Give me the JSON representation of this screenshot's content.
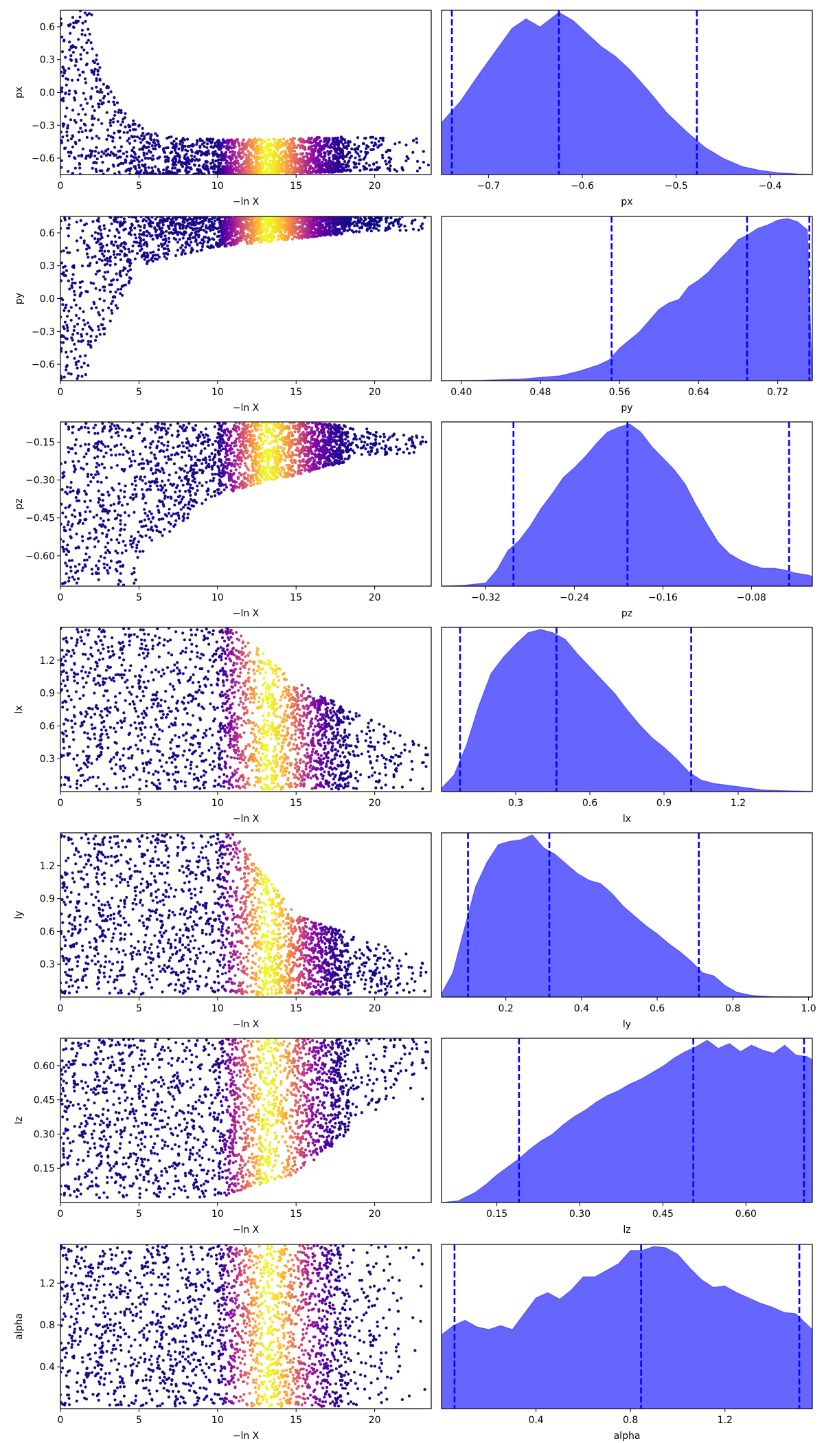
{
  "chart_data": [
    {
      "type": "scatter",
      "xlabel": "−ln X",
      "ylabel": "px",
      "xlim": [
        0,
        23.6
      ],
      "ylim": [
        -0.75,
        0.75
      ],
      "xticks": [
        0,
        5,
        10,
        15,
        20
      ],
      "yticks": [
        -0.6,
        -0.3,
        0.0,
        0.3,
        0.6
      ],
      "ytick_labels": [
        "−0.6",
        "−0.3",
        "0.0",
        "0.3",
        "0.6"
      ],
      "colormap": "plasma",
      "shape": {
        "kind": "floor",
        "floor_x1": -0.58,
        "floor_x20": -0.52,
        "top_x2": 0.75,
        "band": 0.12
      }
    },
    {
      "type": "area",
      "xlabel": "px",
      "xlim": [
        -0.75,
        -0.355
      ],
      "xticks": [
        -0.7,
        -0.6,
        -0.5,
        -0.4
      ],
      "xtick_labels": [
        "−0.7",
        "−0.6",
        "−0.5",
        "−0.4"
      ],
      "quantiles": [
        -0.739,
        -0.625,
        -0.478
      ],
      "fill_color": "#6666ff",
      "line_color": "#0000ff",
      "density": {
        "x": [
          -0.75,
          -0.73,
          -0.71,
          -0.69,
          -0.675,
          -0.66,
          -0.645,
          -0.625,
          -0.61,
          -0.595,
          -0.58,
          -0.565,
          -0.55,
          -0.53,
          -0.51,
          -0.49,
          -0.47,
          -0.45,
          -0.43,
          -0.41,
          -0.39,
          -0.37,
          -0.355
        ],
        "y": [
          0.32,
          0.45,
          0.62,
          0.78,
          0.9,
          0.96,
          0.91,
          1.0,
          0.95,
          0.87,
          0.79,
          0.73,
          0.65,
          0.52,
          0.38,
          0.27,
          0.17,
          0.1,
          0.05,
          0.025,
          0.01,
          0.004,
          0.002
        ]
      }
    },
    {
      "type": "scatter",
      "xlabel": "−ln X",
      "ylabel": "py",
      "xlim": [
        0,
        23.6
      ],
      "ylim": [
        -0.75,
        0.75
      ],
      "xticks": [
        0,
        5,
        10,
        15,
        20
      ],
      "yticks": [
        -0.6,
        -0.3,
        0.0,
        0.3,
        0.6
      ],
      "ytick_labels": [
        "−0.6",
        "−0.3",
        "0.0",
        "0.3",
        "0.6"
      ],
      "colormap": "plasma",
      "shape": {
        "kind": "ceiling",
        "ceil_x1": 0.75,
        "ceil_x2": -0.75,
        "lower_x5": 0.3,
        "lower_x10": 0.47,
        "lower_x20": 0.62,
        "band": 0.12
      }
    },
    {
      "type": "area",
      "xlabel": "py",
      "xlim": [
        0.38,
        0.755
      ],
      "xticks": [
        0.4,
        0.48,
        0.56,
        0.64,
        0.72
      ],
      "xtick_labels": [
        "0.40",
        "0.48",
        "0.56",
        "0.64",
        "0.72"
      ],
      "quantiles": [
        0.552,
        0.689,
        0.752
      ],
      "fill_color": "#6666ff",
      "line_color": "#0000ff",
      "density": {
        "x": [
          0.38,
          0.42,
          0.46,
          0.5,
          0.52,
          0.54,
          0.55,
          0.56,
          0.57,
          0.58,
          0.59,
          0.6,
          0.61,
          0.62,
          0.63,
          0.64,
          0.65,
          0.66,
          0.67,
          0.68,
          0.69,
          0.7,
          0.71,
          0.72,
          0.73,
          0.74,
          0.75,
          0.755
        ],
        "y": [
          0,
          0.002,
          0.01,
          0.03,
          0.06,
          0.1,
          0.13,
          0.2,
          0.25,
          0.3,
          0.37,
          0.44,
          0.48,
          0.5,
          0.58,
          0.62,
          0.67,
          0.74,
          0.8,
          0.87,
          0.9,
          0.94,
          0.96,
          0.99,
          1.0,
          0.98,
          0.93,
          0.0
        ]
      }
    },
    {
      "type": "scatter",
      "xlabel": "−ln X",
      "ylabel": "pz",
      "xlim": [
        0,
        23.6
      ],
      "ylim": [
        -0.72,
        -0.07
      ],
      "xticks": [
        0,
        5,
        10,
        15,
        20
      ],
      "yticks": [
        -0.15,
        -0.3,
        -0.45,
        -0.6
      ],
      "ytick_labels": [
        "−0.15",
        "−0.30",
        "−0.45",
        "−0.60"
      ],
      "colormap": "plasma",
      "shape": {
        "kind": "wedge",
        "top": -0.07,
        "upper_x20": -0.1,
        "lower_x5": -0.6,
        "lower_x10": -0.36,
        "lower_x20": -0.2,
        "band": 0.1
      }
    },
    {
      "type": "area",
      "xlabel": "pz",
      "xlim": [
        -0.36,
        -0.025
      ],
      "xticks": [
        -0.32,
        -0.24,
        -0.16,
        -0.08
      ],
      "xtick_labels": [
        "−0.32",
        "−0.24",
        "−0.16",
        "−0.08"
      ],
      "quantiles": [
        -0.295,
        -0.192,
        -0.046
      ],
      "fill_color": "#6666ff",
      "line_color": "#0000ff",
      "density": {
        "x": [
          -0.36,
          -0.34,
          -0.32,
          -0.31,
          -0.3,
          -0.29,
          -0.28,
          -0.27,
          -0.26,
          -0.25,
          -0.24,
          -0.23,
          -0.22,
          -0.21,
          -0.2,
          -0.19,
          -0.18,
          -0.17,
          -0.16,
          -0.15,
          -0.14,
          -0.13,
          -0.12,
          -0.11,
          -0.1,
          -0.09,
          -0.08,
          -0.07,
          -0.06,
          -0.05,
          -0.04,
          -0.03,
          -0.025
        ],
        "y": [
          0,
          0.005,
          0.02,
          0.1,
          0.22,
          0.28,
          0.37,
          0.48,
          0.57,
          0.67,
          0.73,
          0.8,
          0.88,
          0.95,
          0.98,
          1.0,
          0.95,
          0.86,
          0.79,
          0.72,
          0.63,
          0.5,
          0.38,
          0.27,
          0.2,
          0.16,
          0.13,
          0.11,
          0.11,
          0.1,
          0.08,
          0.07,
          0.06
        ]
      }
    },
    {
      "type": "scatter",
      "xlabel": "−ln X",
      "ylabel": "lx",
      "xlim": [
        0,
        23.6
      ],
      "ylim": [
        0,
        1.5
      ],
      "xticks": [
        0,
        5,
        10,
        15,
        20
      ],
      "yticks": [
        0.3,
        0.6,
        0.9,
        1.2
      ],
      "ytick_labels": [
        "0.3",
        "0.6",
        "0.9",
        "1.2"
      ],
      "colormap": "plasma",
      "shape": {
        "kind": "decay",
        "lo": 0.02,
        "hi0": 1.5,
        "hi15": 1.0,
        "hi20": 0.85
      }
    },
    {
      "type": "area",
      "xlabel": "lx",
      "xlim": [
        0.0,
        1.5
      ],
      "xticks": [
        0.3,
        0.6,
        0.9,
        1.2
      ],
      "xtick_labels": [
        "0.3",
        "0.6",
        "0.9",
        "1.2"
      ],
      "quantiles": [
        0.075,
        0.465,
        1.01
      ],
      "fill_color": "#6666ff",
      "line_color": "#0000ff",
      "density": {
        "x": [
          0.0,
          0.05,
          0.1,
          0.15,
          0.2,
          0.25,
          0.3,
          0.35,
          0.4,
          0.45,
          0.5,
          0.55,
          0.6,
          0.65,
          0.7,
          0.75,
          0.8,
          0.85,
          0.9,
          0.95,
          1.0,
          1.05,
          1.1,
          1.2,
          1.3,
          1.4,
          1.5
        ],
        "y": [
          0.02,
          0.1,
          0.28,
          0.52,
          0.72,
          0.82,
          0.9,
          0.97,
          0.99,
          0.97,
          0.93,
          0.84,
          0.76,
          0.68,
          0.6,
          0.5,
          0.41,
          0.33,
          0.27,
          0.2,
          0.12,
          0.07,
          0.05,
          0.03,
          0.01,
          0.005,
          0.002
        ]
      }
    },
    {
      "type": "scatter",
      "xlabel": "−ln X",
      "ylabel": "ly",
      "xlim": [
        0,
        23.6
      ],
      "ylim": [
        0,
        1.5
      ],
      "xticks": [
        0,
        5,
        10,
        15,
        20
      ],
      "yticks": [
        0.3,
        0.6,
        0.9,
        1.2
      ],
      "ytick_labels": [
        "0.3",
        "0.6",
        "0.9",
        "1.2"
      ],
      "colormap": "plasma",
      "shape": {
        "kind": "decay",
        "lo": 0.02,
        "hi0": 1.5,
        "hi15": 0.75,
        "hi20": 0.7
      }
    },
    {
      "type": "area",
      "xlabel": "ly",
      "xlim": [
        0.03,
        1.01
      ],
      "xticks": [
        0.2,
        0.4,
        0.6,
        0.8,
        1.0
      ],
      "xtick_labels": [
        "0.2",
        "0.4",
        "0.6",
        "0.8",
        "1.0"
      ],
      "quantiles": [
        0.1,
        0.315,
        0.71
      ],
      "fill_color": "#6666ff",
      "line_color": "#0000ff",
      "density": {
        "x": [
          0.03,
          0.06,
          0.09,
          0.12,
          0.15,
          0.18,
          0.21,
          0.24,
          0.27,
          0.3,
          0.33,
          0.36,
          0.39,
          0.42,
          0.45,
          0.48,
          0.51,
          0.54,
          0.57,
          0.6,
          0.63,
          0.66,
          0.69,
          0.72,
          0.75,
          0.78,
          0.81,
          0.85,
          0.9,
          1.01
        ],
        "y": [
          0.02,
          0.15,
          0.42,
          0.68,
          0.83,
          0.94,
          0.96,
          0.97,
          1.0,
          0.92,
          0.88,
          0.82,
          0.76,
          0.72,
          0.7,
          0.64,
          0.56,
          0.5,
          0.44,
          0.39,
          0.33,
          0.28,
          0.22,
          0.15,
          0.13,
          0.07,
          0.03,
          0.01,
          0.003,
          0.001
        ]
      }
    },
    {
      "type": "scatter",
      "xlabel": "−ln X",
      "ylabel": "lz",
      "xlim": [
        0,
        23.6
      ],
      "ylim": [
        0,
        0.72
      ],
      "xticks": [
        0,
        5,
        10,
        15,
        20
      ],
      "yticks": [
        0.15,
        0.3,
        0.45,
        0.6
      ],
      "ytick_labels": [
        "0.15",
        "0.30",
        "0.45",
        "0.60"
      ],
      "colormap": "plasma",
      "shape": {
        "kind": "rise",
        "lo0": 0.02,
        "lo10": 0.02,
        "lo15": 0.12,
        "lo20": 0.45,
        "hi": 0.72
      }
    },
    {
      "type": "area",
      "xlabel": "lz",
      "xlim": [
        0.05,
        0.72
      ],
      "xticks": [
        0.15,
        0.3,
        0.45,
        0.6
      ],
      "xtick_labels": [
        "0.15",
        "0.30",
        "0.45",
        "0.60"
      ],
      "quantiles": [
        0.19,
        0.505,
        0.705
      ],
      "fill_color": "#6666ff",
      "line_color": "#0000ff",
      "density": {
        "x": [
          0.05,
          0.08,
          0.11,
          0.13,
          0.15,
          0.17,
          0.19,
          0.21,
          0.23,
          0.25,
          0.27,
          0.29,
          0.31,
          0.33,
          0.35,
          0.37,
          0.39,
          0.41,
          0.43,
          0.45,
          0.47,
          0.49,
          0.51,
          0.53,
          0.55,
          0.57,
          0.59,
          0.61,
          0.63,
          0.65,
          0.67,
          0.69,
          0.71,
          0.72
        ],
        "y": [
          0,
          0.01,
          0.06,
          0.11,
          0.17,
          0.22,
          0.27,
          0.33,
          0.38,
          0.42,
          0.48,
          0.53,
          0.57,
          0.62,
          0.66,
          0.69,
          0.73,
          0.76,
          0.8,
          0.84,
          0.89,
          0.93,
          0.96,
          1.0,
          0.95,
          0.98,
          0.93,
          0.97,
          0.94,
          0.92,
          0.97,
          0.91,
          0.9,
          0.88
        ]
      }
    },
    {
      "type": "scatter",
      "xlabel": "−ln X",
      "ylabel": "alpha",
      "xlim": [
        0,
        23.6
      ],
      "ylim": [
        0,
        1.57
      ],
      "xticks": [
        0,
        5,
        10,
        15,
        20
      ],
      "yticks": [
        0.4,
        0.8,
        1.2
      ],
      "ytick_labels": [
        "0.4",
        "0.8",
        "1.2"
      ],
      "colormap": "plasma",
      "shape": {
        "kind": "full",
        "lo": 0.02,
        "hi": 1.57
      }
    },
    {
      "type": "area",
      "xlabel": "alpha",
      "xlim": [
        0.0,
        1.57
      ],
      "xticks": [
        0.4,
        0.8,
        1.2
      ],
      "xtick_labels": [
        "0.4",
        "0.8",
        "1.2"
      ],
      "quantiles": [
        0.055,
        0.845,
        1.515
      ],
      "fill_color": "#6666ff",
      "line_color": "#0000ff",
      "density": {
        "x": [
          0.0,
          0.05,
          0.1,
          0.15,
          0.2,
          0.25,
          0.3,
          0.35,
          0.4,
          0.45,
          0.5,
          0.55,
          0.6,
          0.65,
          0.7,
          0.75,
          0.8,
          0.85,
          0.9,
          0.95,
          1.0,
          1.05,
          1.1,
          1.15,
          1.2,
          1.25,
          1.3,
          1.35,
          1.4,
          1.45,
          1.5,
          1.57
        ],
        "y": [
          0.56,
          0.63,
          0.67,
          0.62,
          0.6,
          0.63,
          0.6,
          0.72,
          0.84,
          0.88,
          0.83,
          0.9,
          1.0,
          1.0,
          1.05,
          1.1,
          1.2,
          1.2,
          1.23,
          1.22,
          1.17,
          1.07,
          0.98,
          0.92,
          0.93,
          0.88,
          0.84,
          0.8,
          0.77,
          0.73,
          0.72,
          0.6
        ]
      }
    }
  ]
}
